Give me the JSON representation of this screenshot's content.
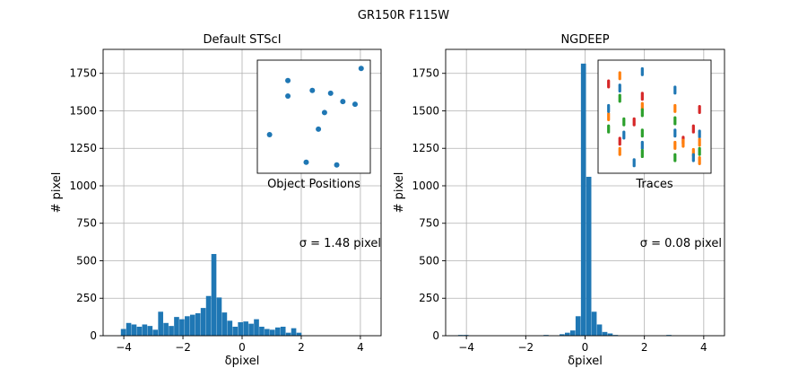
{
  "suptitle": "GR150R F115W",
  "chart_data": [
    {
      "type": "bar",
      "title": "Default STScI",
      "xlabel": "δpixel",
      "ylabel": "# pixel",
      "xlim": [
        -4.7,
        4.7
      ],
      "ylim": [
        0,
        1910
      ],
      "xticks": [
        -4,
        -2,
        0,
        2,
        4
      ],
      "yticks": [
        0,
        250,
        500,
        750,
        1000,
        1250,
        1500,
        1750
      ],
      "grid": true,
      "bar_color": "#1f77b4",
      "bin_width": 0.18,
      "x": [
        -4.01,
        -3.83,
        -3.65,
        -3.47,
        -3.29,
        -3.11,
        -2.93,
        -2.75,
        -2.57,
        -2.39,
        -2.21,
        -2.03,
        -1.85,
        -1.67,
        -1.49,
        -1.31,
        -1.13,
        -0.95,
        -0.77,
        -0.59,
        -0.41,
        -0.23,
        -0.05,
        0.13,
        0.31,
        0.49,
        0.67,
        0.85,
        1.03,
        1.21,
        1.39,
        1.57,
        1.75,
        1.93
      ],
      "values": [
        45,
        85,
        75,
        60,
        75,
        65,
        40,
        160,
        85,
        65,
        125,
        110,
        130,
        140,
        150,
        185,
        265,
        545,
        255,
        155,
        100,
        60,
        90,
        95,
        80,
        110,
        60,
        45,
        40,
        55,
        60,
        20,
        50,
        20
      ],
      "annotation": "σ = 1.48 pixel",
      "inset": {
        "label": "Object Positions",
        "points": [
          [
            1.1,
            0.78
          ],
          [
            0.8,
            -0.2
          ],
          [
            1.4,
            -0.7
          ],
          [
            1.5,
            0.6
          ],
          [
            1.7,
            0.2
          ],
          [
            1.6,
            -0.1
          ],
          [
            1.9,
            -0.75
          ],
          [
            1.8,
            0.55
          ],
          [
            2.2,
            0.35
          ],
          [
            1.1,
            0.5
          ],
          [
            2.0,
            0.4
          ],
          [
            2.3,
            1.0
          ]
        ]
      }
    },
    {
      "type": "bar",
      "title": "NGDEEP",
      "xlabel": "δpixel",
      "ylabel": "# pixel",
      "xlim": [
        -4.7,
        4.7
      ],
      "ylim": [
        0,
        1910
      ],
      "xticks": [
        -4,
        -2,
        0,
        2,
        4
      ],
      "yticks": [
        0,
        250,
        500,
        750,
        1000,
        1250,
        1500,
        1750
      ],
      "grid": true,
      "bar_color": "#1f77b4",
      "bin_width": 0.18,
      "x": [
        -4.19,
        -4.01,
        -1.31,
        -0.77,
        -0.59,
        -0.41,
        -0.23,
        -0.05,
        0.13,
        0.31,
        0.49,
        0.67,
        0.85,
        1.03,
        2.83
      ],
      "values": [
        5,
        5,
        5,
        10,
        20,
        35,
        130,
        1815,
        1060,
        160,
        75,
        25,
        15,
        5,
        5
      ],
      "annotation": "σ = 0.08 pixel",
      "inset": {
        "label": "Traces",
        "series_colors": [
          "#1f77b4",
          "#ff7f0e",
          "#2ca02c",
          "#d62728"
        ]
      }
    }
  ]
}
